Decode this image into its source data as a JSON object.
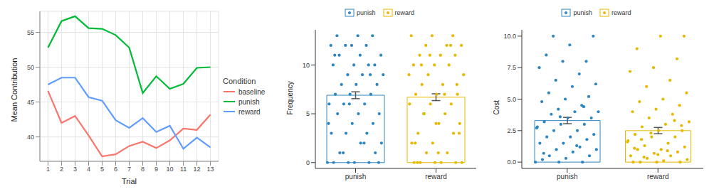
{
  "chart_data": [
    {
      "type": "line",
      "xlabel": "Trial",
      "ylabel": "Mean Contribution",
      "legend_title": "Condition",
      "legend": "right",
      "grid": true,
      "x": [
        1,
        2,
        3,
        4,
        5,
        6,
        7,
        8,
        9,
        10,
        11,
        12,
        13
      ],
      "xlim": [
        0.4,
        13.6
      ],
      "xticks": [
        1,
        2,
        3,
        4,
        5,
        6,
        7,
        8,
        9,
        10,
        11,
        12,
        13
      ],
      "ylim": [
        36.5,
        58
      ],
      "yticks": [
        40,
        45,
        50,
        55
      ],
      "series": [
        {
          "name": "baseline",
          "color": "#F8766D",
          "values": [
            46.6,
            42.0,
            43.0,
            40.2,
            37.2,
            37.5,
            38.7,
            39.3,
            38.4,
            39.5,
            41.2,
            41.0,
            43.2
          ]
        },
        {
          "name": "punish",
          "color": "#00BA38",
          "values": [
            52.8,
            56.6,
            57.3,
            55.6,
            55.5,
            54.6,
            52.8,
            46.3,
            48.7,
            46.9,
            47.6,
            49.9,
            50.0
          ]
        },
        {
          "name": "reward",
          "color": "#619CFF",
          "values": [
            47.5,
            48.5,
            48.5,
            45.7,
            45.2,
            42.4,
            41.3,
            42.7,
            40.7,
            41.6,
            38.3,
            39.9,
            38.5
          ]
        }
      ]
    },
    {
      "type": "bar",
      "ylabel": "Frequency",
      "legend": "top",
      "grid": false,
      "categories": [
        "punish",
        "reward"
      ],
      "values": [
        6.9,
        6.7
      ],
      "errors": [
        0.35,
        0.35
      ],
      "colors": [
        "#2E86C1",
        "#E7B800"
      ],
      "ylim": [
        -0.6,
        13.6
      ],
      "yticks": [
        0,
        5,
        10
      ],
      "points": [
        [
          0,
          0,
          0,
          0,
          0,
          1,
          1,
          2,
          2,
          3,
          3,
          3,
          4,
          4,
          5,
          5,
          5,
          6,
          6,
          6,
          7,
          7,
          7,
          8,
          8,
          8,
          9,
          9,
          9,
          10,
          10,
          10,
          10,
          11,
          11,
          11,
          12,
          12,
          12,
          12,
          13,
          13,
          13,
          0,
          1,
          2,
          4,
          6,
          9,
          11
        ],
        [
          0,
          0,
          0,
          0,
          0,
          0,
          1,
          1,
          2,
          2,
          3,
          3,
          4,
          4,
          5,
          5,
          6,
          6,
          6,
          7,
          7,
          7,
          8,
          8,
          9,
          9,
          10,
          10,
          10,
          11,
          11,
          11,
          12,
          12,
          12,
          13,
          13,
          13,
          0,
          1,
          3,
          5,
          7,
          9,
          11,
          12,
          2,
          4,
          8,
          10
        ]
      ]
    },
    {
      "type": "bar",
      "ylabel": "Cost",
      "legend": "top",
      "grid": false,
      "categories": [
        "punish",
        "reward"
      ],
      "values": [
        3.3,
        2.5
      ],
      "errors": [
        0.25,
        0.25
      ],
      "colors": [
        "#2E86C1",
        "#E7B800"
      ],
      "ylim": [
        -0.5,
        10.5
      ],
      "yticks": [
        {
          "value": 0,
          "label": "0.0"
        },
        {
          "value": 2.5,
          "label": "2.5"
        },
        {
          "value": 5,
          "label": "5.0"
        },
        {
          "value": 7.5,
          "label": "7.5"
        },
        {
          "value": 10,
          "label": "10.0"
        }
      ],
      "points": [
        [
          0,
          0,
          0,
          0.2,
          0.3,
          0.5,
          0.5,
          0.8,
          1,
          1,
          1.2,
          1.5,
          1.5,
          1.8,
          2,
          2,
          2.2,
          2.5,
          2.5,
          2.8,
          3,
          3,
          3.2,
          3.5,
          3.5,
          3.8,
          4,
          4,
          4.2,
          4.5,
          4.8,
          5,
          5.2,
          5.5,
          6,
          6.2,
          6.5,
          7,
          7.5,
          8,
          8,
          8.5,
          9.3,
          10,
          10,
          1.3,
          2.7,
          3.6,
          4.4,
          0.7
        ],
        [
          0,
          0,
          0,
          0,
          0.1,
          0.2,
          0.3,
          0.5,
          0.5,
          0.7,
          0.8,
          1,
          1,
          1.2,
          1.3,
          1.5,
          1.7,
          2,
          2,
          2.2,
          2.5,
          2.5,
          2.8,
          3,
          3.2,
          3.5,
          3.8,
          4,
          4.2,
          4.5,
          4.8,
          5,
          5.5,
          6,
          6.5,
          7.2,
          7.5,
          8.2,
          9,
          10,
          10,
          0.4,
          0.9,
          1.6,
          2.3,
          3.3,
          1.1,
          0.6,
          2.9,
          1.8
        ]
      ]
    }
  ]
}
